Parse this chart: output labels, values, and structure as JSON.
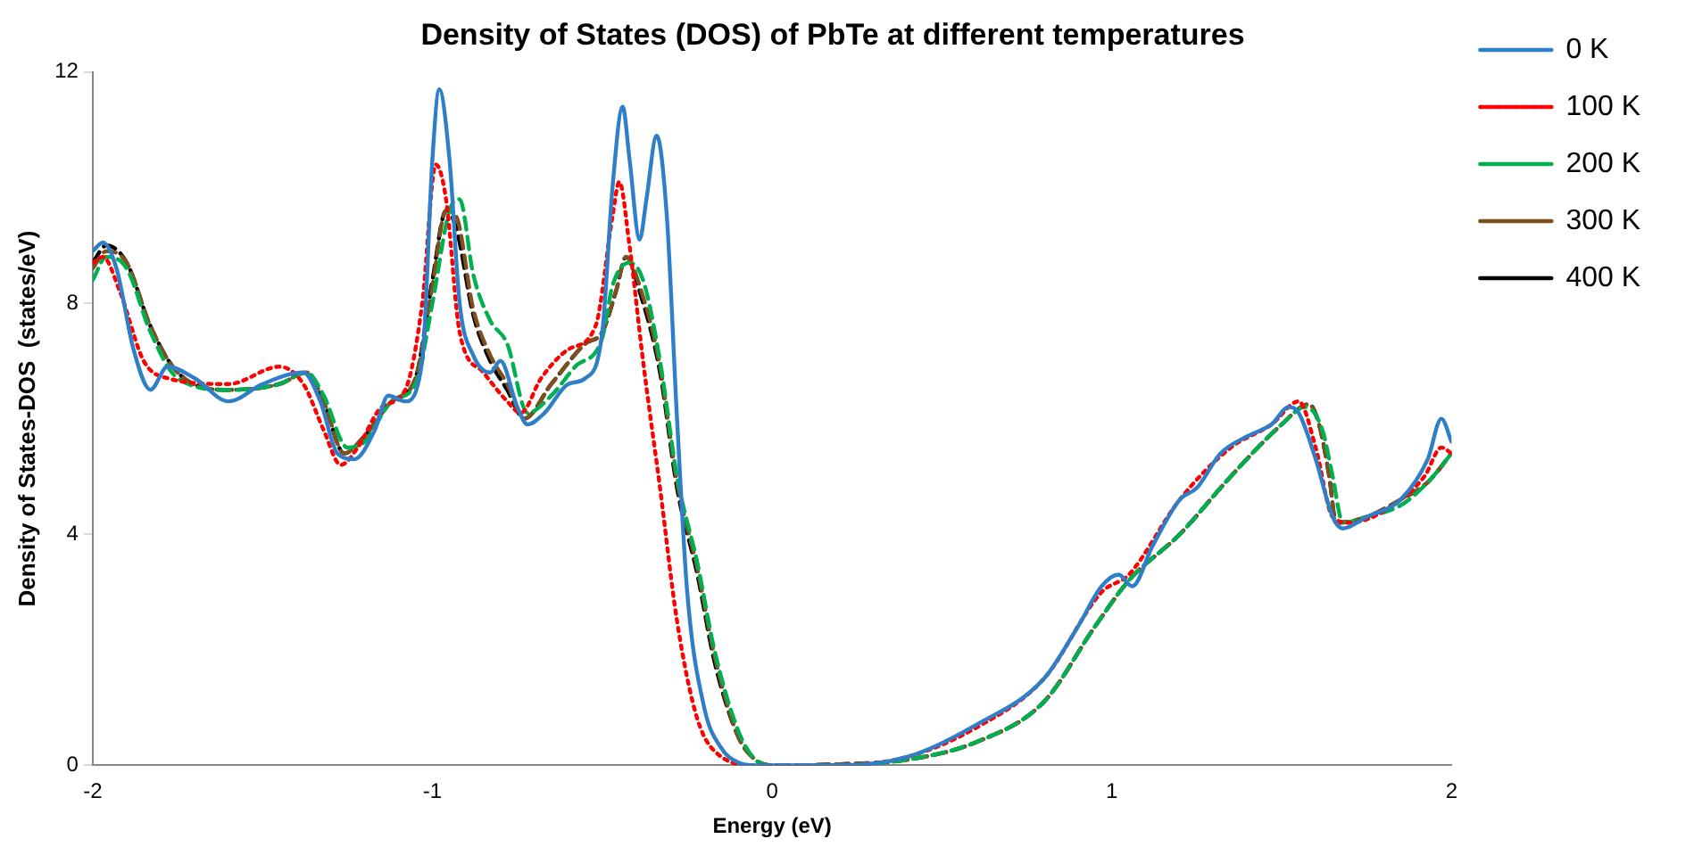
{
  "chart_data": {
    "type": "line",
    "title": "Density of States (DOS) of PbTe at different temperatures",
    "xlabel": "Energy (eV)",
    "ylabel": "Density of States-DOS  (states/eV)",
    "xlim": [
      -2,
      2
    ],
    "xticks": [
      -2,
      -1,
      0,
      1,
      2
    ],
    "ylim": [
      0,
      12
    ],
    "yticks": [
      0,
      4,
      8,
      12
    ],
    "grid": false,
    "legend": "right",
    "marker": "none",
    "series": [
      {
        "name": "0 K",
        "color": "#2e7fc8",
        "line_style": "solid",
        "x": [
          -2.0,
          -1.97,
          -1.93,
          -1.88,
          -1.83,
          -1.78,
          -1.7,
          -1.6,
          -1.5,
          -1.38,
          -1.33,
          -1.28,
          -1.23,
          -1.17,
          -1.13,
          -1.08,
          -1.03,
          -1.0,
          -0.98,
          -0.95,
          -0.92,
          -0.88,
          -0.83,
          -0.8,
          -0.75,
          -0.72,
          -0.67,
          -0.6,
          -0.55,
          -0.5,
          -0.47,
          -0.44,
          -0.42,
          -0.39,
          -0.37,
          -0.34,
          -0.31,
          -0.28,
          -0.25,
          -0.2,
          -0.15,
          -0.1,
          -0.05,
          0,
          0.2,
          0.4,
          0.6,
          0.8,
          0.9,
          0.97,
          1.02,
          1.06,
          1.12,
          1.2,
          1.25,
          1.32,
          1.4,
          1.47,
          1.52,
          1.55,
          1.6,
          1.65,
          1.68,
          1.75,
          1.85,
          1.93,
          1.97,
          2.0
        ],
        "values": [
          8.9,
          9.05,
          8.6,
          7.2,
          6.5,
          6.9,
          6.7,
          6.3,
          6.6,
          6.8,
          6.3,
          5.4,
          5.3,
          5.8,
          6.4,
          6.3,
          7.0,
          10.5,
          11.7,
          10.5,
          8.0,
          7.1,
          6.8,
          7.0,
          6.2,
          5.9,
          6.1,
          6.6,
          6.7,
          7.5,
          10.0,
          11.4,
          10.5,
          9.1,
          9.8,
          10.9,
          9.5,
          6.0,
          3.0,
          1.0,
          0.3,
          0.05,
          0,
          0,
          0,
          0.15,
          0.7,
          1.5,
          2.4,
          3.1,
          3.3,
          3.1,
          3.8,
          4.6,
          4.8,
          5.4,
          5.7,
          5.9,
          6.2,
          6.1,
          5.3,
          4.3,
          4.1,
          4.3,
          4.6,
          5.3,
          6.0,
          5.6
        ]
      },
      {
        "name": "100 K",
        "color": "#ff0000",
        "line_style": "dotted",
        "x": [
          -2.0,
          -1.97,
          -1.92,
          -1.85,
          -1.78,
          -1.6,
          -1.45,
          -1.38,
          -1.32,
          -1.27,
          -1.22,
          -1.15,
          -1.08,
          -1.03,
          -0.99,
          -0.96,
          -0.92,
          -0.85,
          -0.78,
          -0.74,
          -0.68,
          -0.6,
          -0.52,
          -0.47,
          -0.45,
          -0.42,
          -0.38,
          -0.33,
          -0.28,
          -0.22,
          -0.15,
          -0.05,
          0.2,
          0.4,
          0.6,
          0.8,
          0.97,
          1.05,
          1.2,
          1.35,
          1.47,
          1.55,
          1.6,
          1.65,
          1.7,
          1.8,
          1.92,
          1.97,
          2.0
        ],
        "values": [
          8.7,
          8.8,
          8.2,
          7.0,
          6.7,
          6.6,
          6.9,
          6.6,
          5.8,
          5.2,
          5.5,
          6.2,
          6.5,
          8.0,
          10.4,
          9.8,
          7.5,
          6.8,
          6.3,
          6.1,
          6.7,
          7.2,
          7.6,
          9.5,
          10.1,
          9.0,
          7.0,
          4.8,
          2.5,
          0.8,
          0.15,
          0,
          0,
          0.15,
          0.65,
          1.5,
          3.0,
          3.3,
          4.6,
          5.5,
          5.9,
          6.3,
          5.5,
          4.3,
          4.2,
          4.4,
          5.0,
          5.5,
          5.4
        ]
      },
      {
        "name": "200 K",
        "color": "#00b050",
        "line_style": "dashed",
        "x": [
          -2.0,
          -1.96,
          -1.9,
          -1.83,
          -1.75,
          -1.6,
          -1.45,
          -1.37,
          -1.32,
          -1.25,
          -1.2,
          -1.12,
          -1.05,
          -1.0,
          -0.95,
          -0.92,
          -0.88,
          -0.83,
          -0.78,
          -0.72,
          -0.65,
          -0.58,
          -0.5,
          -0.47,
          -0.42,
          -0.38,
          -0.33,
          -0.28,
          -0.22,
          -0.17,
          -0.1,
          -0.05,
          0,
          0.2,
          0.4,
          0.6,
          0.8,
          0.95,
          1.05,
          1.2,
          1.35,
          1.5,
          1.57,
          1.62,
          1.65,
          1.68,
          1.75,
          1.85,
          1.93,
          2.0
        ],
        "values": [
          8.4,
          8.8,
          8.6,
          7.5,
          6.7,
          6.5,
          6.6,
          6.8,
          6.4,
          5.5,
          5.6,
          6.3,
          6.6,
          8.0,
          9.6,
          9.8,
          8.5,
          7.7,
          7.3,
          6.1,
          6.4,
          6.9,
          7.4,
          8.3,
          8.7,
          8.4,
          7.0,
          5.0,
          3.5,
          2.0,
          0.6,
          0.1,
          0,
          0,
          0.1,
          0.4,
          1.1,
          2.4,
          3.2,
          4.0,
          5.0,
          5.9,
          6.2,
          5.8,
          5.0,
          4.2,
          4.3,
          4.5,
          4.9,
          5.4
        ]
      },
      {
        "name": "300 K",
        "color": "#7f4f1f",
        "line_style": "dashed",
        "x": [
          -2.0,
          -1.96,
          -1.9,
          -1.83,
          -1.75,
          -1.6,
          -1.45,
          -1.37,
          -1.32,
          -1.26,
          -1.2,
          -1.12,
          -1.05,
          -1.0,
          -0.96,
          -0.93,
          -0.88,
          -0.83,
          -0.78,
          -0.73,
          -0.65,
          -0.55,
          -0.5,
          -0.46,
          -0.43,
          -0.39,
          -0.33,
          -0.28,
          -0.22,
          -0.17,
          -0.1,
          -0.05,
          0,
          0.2,
          0.4,
          0.6,
          0.8,
          0.95,
          1.05,
          1.2,
          1.35,
          1.5,
          1.58,
          1.61,
          1.64,
          1.66,
          1.75,
          1.85,
          1.93,
          2.0
        ],
        "values": [
          8.6,
          8.9,
          8.7,
          7.6,
          6.8,
          6.5,
          6.6,
          6.8,
          6.3,
          5.4,
          5.7,
          6.3,
          6.7,
          8.3,
          9.6,
          9.5,
          7.9,
          7.1,
          6.6,
          6.0,
          6.6,
          7.3,
          7.5,
          8.2,
          8.8,
          8.3,
          6.9,
          4.9,
          3.4,
          1.9,
          0.5,
          0.1,
          0,
          0.02,
          0.1,
          0.4,
          1.1,
          2.4,
          3.2,
          4.0,
          5.0,
          5.9,
          6.25,
          5.9,
          5.0,
          4.2,
          4.3,
          4.6,
          4.9,
          5.4
        ]
      },
      {
        "name": "400 K",
        "color": "#000000",
        "line_style": "dashed",
        "x": [
          -2.0,
          -1.96,
          -1.9,
          -1.83,
          -1.75,
          -1.6,
          -1.45,
          -1.37,
          -1.32,
          -1.26,
          -1.2,
          -1.12,
          -1.05,
          -1.0,
          -0.96,
          -0.93,
          -0.88,
          -0.83,
          -0.78,
          -0.73,
          -0.65,
          -0.55,
          -0.5,
          -0.46,
          -0.43,
          -0.39,
          -0.33,
          -0.28,
          -0.22,
          -0.17,
          -0.1,
          -0.05,
          0,
          0.2,
          0.4,
          0.6,
          0.8,
          0.95,
          1.05,
          1.2,
          1.35,
          1.5,
          1.58,
          1.61,
          1.64,
          1.66,
          1.75,
          1.85,
          1.93,
          2.0
        ],
        "values": [
          8.7,
          9.0,
          8.7,
          7.6,
          6.8,
          6.5,
          6.6,
          6.8,
          6.3,
          5.4,
          5.7,
          6.3,
          6.7,
          8.4,
          9.6,
          9.3,
          7.8,
          7.0,
          6.5,
          6.0,
          6.6,
          7.3,
          7.5,
          8.2,
          8.8,
          8.2,
          6.8,
          4.8,
          3.3,
          1.8,
          0.5,
          0.1,
          0,
          0.02,
          0.1,
          0.4,
          1.1,
          2.4,
          3.2,
          4.0,
          5.0,
          5.9,
          6.25,
          5.9,
          5.0,
          4.2,
          4.3,
          4.6,
          4.9,
          5.4
        ]
      }
    ]
  }
}
